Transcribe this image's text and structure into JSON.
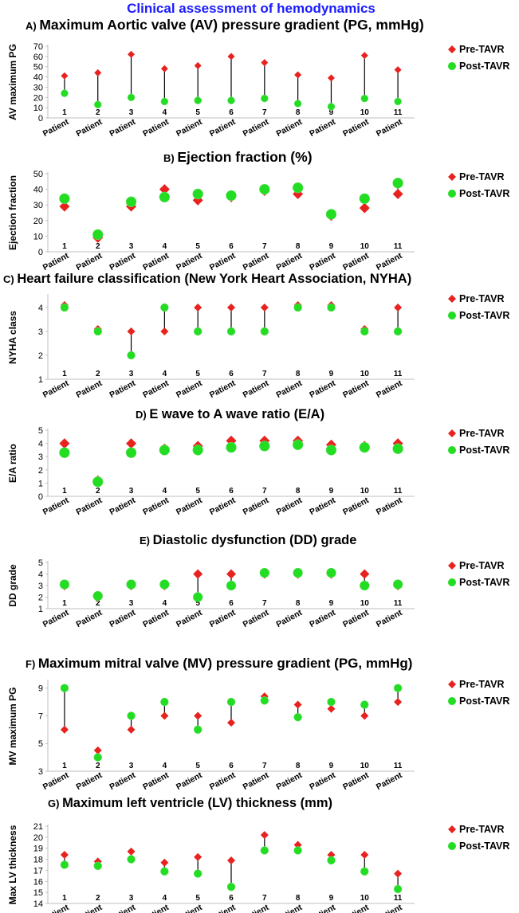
{
  "main_title": "Clinical assessment of hemodynamics",
  "legend": {
    "pre": "Pre-TAVR",
    "post": "Post-TAVR",
    "pre_color": "#e8231f",
    "post_color": "#22dd22"
  },
  "x_category_label": "Patient",
  "chart_data": [
    {
      "type": "scatter",
      "letter": "A)",
      "title": "Maximum Aortic valve (AV) pressure gradient (PG, mmHg)",
      "ylabel": "AV maximum PG",
      "ylim": [
        0,
        70
      ],
      "yticks": [
        0,
        10,
        20,
        30,
        40,
        50,
        60,
        70
      ],
      "categories": [
        "1",
        "2",
        "3",
        "4",
        "5",
        "6",
        "7",
        "8",
        "9",
        "10",
        "11"
      ],
      "series": [
        {
          "name": "Pre-TAVR",
          "values": [
            41,
            44,
            62,
            48,
            51,
            60,
            54,
            42,
            39,
            61,
            47
          ]
        },
        {
          "name": "Post-TAVR",
          "values": [
            24,
            13,
            20,
            16,
            17,
            17,
            19,
            14,
            11,
            19,
            16
          ]
        }
      ]
    },
    {
      "type": "scatter",
      "letter": "B)",
      "title": "Ejection fraction (%)",
      "ylabel": "Ejection fraction",
      "ylim": [
        0,
        50
      ],
      "yticks": [
        0,
        10,
        20,
        30,
        40,
        50
      ],
      "categories": [
        "1",
        "2",
        "3",
        "4",
        "5",
        "6",
        "7",
        "8",
        "9",
        "10",
        "11"
      ],
      "series": [
        {
          "name": "Pre-TAVR",
          "values": [
            29,
            9,
            29,
            40,
            33,
            35,
            39,
            37,
            23,
            28,
            37
          ]
        },
        {
          "name": "Post-TAVR",
          "values": [
            34,
            11,
            32,
            35,
            37,
            36,
            40,
            41,
            24,
            34,
            44
          ]
        }
      ]
    },
    {
      "type": "scatter",
      "letter": "C)",
      "title": "Heart failure classification (New York Heart Association, NYHA)",
      "ylabel": "NYHA class",
      "ylim": [
        1,
        4.5
      ],
      "yticks": [
        1,
        2,
        3,
        4
      ],
      "categories": [
        "1",
        "2",
        "3",
        "4",
        "5",
        "6",
        "7",
        "8",
        "9",
        "10",
        "11"
      ],
      "series": [
        {
          "name": "Pre-TAVR",
          "values": [
            4.1,
            3.1,
            3,
            3,
            4,
            4,
            4,
            4.1,
            4.1,
            3.1,
            4
          ]
        },
        {
          "name": "Post-TAVR",
          "values": [
            4,
            3,
            2,
            4,
            3,
            3,
            3,
            4,
            4,
            3,
            3
          ]
        }
      ]
    },
    {
      "type": "scatter",
      "letter": "D)",
      "title": "E wave to A wave ratio (E/A)",
      "ylabel": "E/A ratio",
      "ylim": [
        0,
        5
      ],
      "yticks": [
        0,
        1,
        2,
        3,
        4,
        5
      ],
      "categories": [
        "1",
        "2",
        "3",
        "4",
        "5",
        "6",
        "7",
        "8",
        "9",
        "10",
        "11"
      ],
      "series": [
        {
          "name": "Pre-TAVR",
          "values": [
            4,
            1.2,
            4,
            3.6,
            3.8,
            4.2,
            4.2,
            4.2,
            3.9,
            3.8,
            4
          ]
        },
        {
          "name": "Post-TAVR",
          "values": [
            3.3,
            1.1,
            3.3,
            3.5,
            3.5,
            3.7,
            3.8,
            3.9,
            3.5,
            3.7,
            3.6
          ]
        }
      ]
    },
    {
      "type": "scatter",
      "letter": "E)",
      "title": "Diastolic dysfunction (DD) grade",
      "ylabel": "DD grade",
      "ylim": [
        1,
        5
      ],
      "yticks": [
        1,
        2,
        3,
        4,
        5
      ],
      "categories": [
        "1",
        "2",
        "3",
        "4",
        "5",
        "6",
        "7",
        "8",
        "9",
        "10",
        "11"
      ],
      "series": [
        {
          "name": "Pre-TAVR",
          "values": [
            3,
            2,
            3,
            3,
            4,
            4,
            4,
            4,
            4,
            4,
            3
          ]
        },
        {
          "name": "Post-TAVR",
          "values": [
            3.1,
            2.1,
            3.1,
            3.1,
            2,
            3,
            4.1,
            4.1,
            4.1,
            3,
            3.1
          ]
        }
      ]
    },
    {
      "type": "scatter",
      "letter": "F)",
      "title": "Maximum mitral valve (MV) pressure gradient (PG, mmHg)",
      "ylabel": "MV maximum PG",
      "ylim": [
        3,
        9.5
      ],
      "yticks": [
        3,
        5,
        7,
        9
      ],
      "categories": [
        "1",
        "2",
        "3",
        "4",
        "5",
        "6",
        "7",
        "8",
        "9",
        "10",
        "11"
      ],
      "series": [
        {
          "name": "Pre-TAVR",
          "values": [
            6,
            4.5,
            6,
            7,
            7,
            6.5,
            8.4,
            7.8,
            7.5,
            7,
            8
          ]
        },
        {
          "name": "Post-TAVR",
          "values": [
            9,
            4,
            7,
            8,
            6,
            8,
            8.1,
            6.9,
            8,
            7.8,
            9
          ]
        }
      ]
    },
    {
      "type": "scatter",
      "letter": "G)",
      "title": "Maximum left ventricle (LV) thickness (mm)",
      "ylabel": "Max LV thickness",
      "ylim": [
        14,
        21
      ],
      "yticks": [
        14,
        15,
        16,
        17,
        18,
        19,
        20,
        21
      ],
      "categories": [
        "1",
        "2",
        "3",
        "4",
        "5",
        "6",
        "7",
        "8",
        "9",
        "10",
        "11"
      ],
      "series": [
        {
          "name": "Pre-TAVR",
          "values": [
            18.4,
            17.8,
            18.7,
            17.7,
            18.2,
            17.9,
            20.2,
            19.3,
            18.4,
            18.4,
            16.7
          ]
        },
        {
          "name": "Post-TAVR",
          "values": [
            17.5,
            17.4,
            18,
            16.9,
            16.7,
            15.5,
            18.8,
            18.8,
            17.9,
            16.9,
            15.3
          ]
        }
      ]
    }
  ]
}
